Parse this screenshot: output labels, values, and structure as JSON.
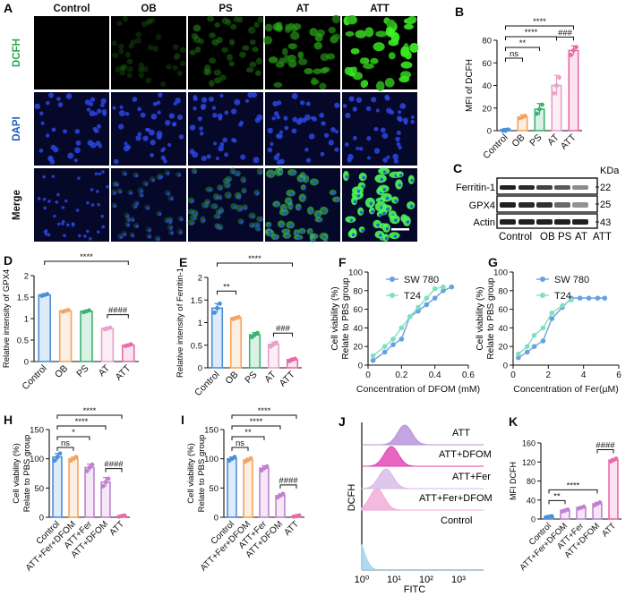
{
  "panels": {
    "A": {
      "letter": "A",
      "columns": [
        "Control",
        "OB",
        "PS",
        "AT",
        "ATT"
      ],
      "rows": [
        "DCFH",
        "DAPI",
        "Merge"
      ],
      "row_colors": [
        "#2aa84a",
        "#1f5fbf",
        "#111111"
      ]
    },
    "C": {
      "letter": "C",
      "unit": "KDa",
      "bands": [
        "Ferritin-1",
        "GPX4",
        "Actin"
      ],
      "markers": [
        "22",
        "25",
        "43"
      ],
      "lanes": [
        "Control",
        "OB",
        "PS",
        "AT",
        "ATT"
      ]
    },
    "J": {
      "letter": "J",
      "ylabel": "DCFH",
      "xlabel": "FITC",
      "xticks": [
        "10⁰",
        "10¹",
        "10²",
        "10³"
      ],
      "labels": [
        "ATT",
        "ATT+DFOM",
        "ATT+Fer",
        "ATT+Fer+DFOM",
        "Control"
      ]
    }
  },
  "chart_data": [
    {
      "id": "B",
      "letter": "B",
      "type": "bar",
      "ylabel": "MFI of DCFH",
      "ylim": [
        0,
        80
      ],
      "yticks": [
        0,
        20,
        40,
        60,
        80
      ],
      "categories": [
        "Control",
        "OB",
        "PS",
        "AT",
        "ATT"
      ],
      "values": [
        1,
        12,
        19,
        40,
        71
      ],
      "errors": [
        1,
        2,
        5,
        9,
        4
      ],
      "points": [
        [
          0,
          0,
          1
        ],
        [
          11,
          12,
          13
        ],
        [
          15,
          19,
          23
        ],
        [
          33,
          40,
          47
        ],
        [
          67,
          71,
          74
        ]
      ],
      "colors": [
        "#4a90d9",
        "#f4a460",
        "#3cb371",
        "#e8a0c8",
        "#e86aa8"
      ],
      "annotations": [
        {
          "from": 0,
          "to": 4,
          "text": "****"
        },
        {
          "from": 0,
          "to": 3,
          "text": "****"
        },
        {
          "from": 0,
          "to": 2,
          "text": "**"
        },
        {
          "from": 0,
          "to": 1,
          "text": "ns"
        },
        {
          "from": 3,
          "to": 4,
          "text": "###"
        }
      ]
    },
    {
      "id": "D",
      "letter": "D",
      "type": "bar",
      "ylabel": "Relative intensity of GPX4",
      "ylim": [
        0,
        2.0
      ],
      "yticks": [
        0,
        0.5,
        1.0,
        1.5,
        2.0
      ],
      "categories": [
        "Control",
        "OB",
        "PS",
        "AT",
        "ATT"
      ],
      "values": [
        1.55,
        1.18,
        1.17,
        0.77,
        0.38
      ],
      "errors": [
        0.03,
        0.02,
        0.02,
        0.03,
        0.02
      ],
      "points": [
        [
          1.53,
          1.55,
          1.57
        ],
        [
          1.16,
          1.18,
          1.2
        ],
        [
          1.15,
          1.17,
          1.19
        ],
        [
          0.75,
          0.77,
          0.79
        ],
        [
          0.36,
          0.38,
          0.4
        ]
      ],
      "colors": [
        "#4a90d9",
        "#f4a460",
        "#3cb371",
        "#e8a0c8",
        "#e86aa8"
      ],
      "annotations": [
        {
          "from": 0,
          "to": 4,
          "text": "****"
        },
        {
          "from": 3,
          "to": 4,
          "text": "####"
        }
      ]
    },
    {
      "id": "E",
      "letter": "E",
      "type": "bar",
      "ylabel": "Relative intensity of Ferritin-1",
      "ylim": [
        0,
        2.0
      ],
      "yticks": [
        0,
        0.5,
        1.0,
        1.5,
        2.0
      ],
      "categories": [
        "Control",
        "OB",
        "PS",
        "AT",
        "ATT"
      ],
      "values": [
        1.32,
        1.1,
        0.73,
        0.52,
        0.18
      ],
      "errors": [
        0.1,
        0.03,
        0.05,
        0.05,
        0.03
      ],
      "points": [
        [
          1.22,
          1.32,
          1.42
        ],
        [
          1.08,
          1.1,
          1.12
        ],
        [
          0.68,
          0.73,
          0.77
        ],
        [
          0.47,
          0.52,
          0.56
        ],
        [
          0.15,
          0.18,
          0.2
        ]
      ],
      "colors": [
        "#4a90d9",
        "#f4a460",
        "#3cb371",
        "#e8a0c8",
        "#e86aa8"
      ],
      "annotations": [
        {
          "from": 0,
          "to": 4,
          "text": "****"
        },
        {
          "from": 0,
          "to": 1,
          "text": "**"
        },
        {
          "from": 3,
          "to": 4,
          "text": "###"
        }
      ]
    },
    {
      "id": "F",
      "letter": "F",
      "type": "line",
      "xlabel": "Concentration of DFOM (mM)",
      "ylabel": "Cell viability (%)\nRelate to PBS group",
      "xlim": [
        0,
        0.6
      ],
      "ylim": [
        0,
        100
      ],
      "xticks": [
        0.0,
        0.2,
        0.4,
        0.6
      ],
      "yticks": [
        0,
        20,
        40,
        60,
        80,
        100
      ],
      "series": [
        {
          "name": "SW 780",
          "color": "#6aa0e0",
          "x": [
            0.03,
            0.1,
            0.15,
            0.2,
            0.25,
            0.3,
            0.35,
            0.4,
            0.45,
            0.5
          ],
          "y": [
            5,
            14,
            22,
            28,
            52,
            58,
            65,
            72,
            80,
            84
          ]
        },
        {
          "name": "T24",
          "color": "#7fe0c0",
          "x": [
            0.03,
            0.1,
            0.15,
            0.2,
            0.25,
            0.3,
            0.35,
            0.4,
            0.45
          ],
          "y": [
            10,
            20,
            28,
            40,
            52,
            62,
            72,
            82,
            84
          ]
        }
      ]
    },
    {
      "id": "G",
      "letter": "G",
      "type": "line",
      "xlabel": "Concentration of Fer(µM)",
      "ylabel": "Cell viability (%)\nRelate to PBS group",
      "xlim": [
        0,
        6
      ],
      "ylim": [
        0,
        100
      ],
      "xticks": [
        0,
        2,
        4,
        6
      ],
      "yticks": [
        0,
        20,
        40,
        60,
        80,
        100
      ],
      "series": [
        {
          "name": "SW 780",
          "color": "#6aa0e0",
          "x": [
            0.3,
            0.8,
            1.2,
            1.7,
            2.2,
            2.8,
            3.3,
            3.8,
            4.3,
            4.8,
            5.2
          ],
          "y": [
            8,
            14,
            20,
            26,
            50,
            62,
            72,
            72,
            72,
            72,
            72
          ]
        },
        {
          "name": "T24",
          "color": "#7fe0c0",
          "x": [
            0.3,
            0.8,
            1.2,
            1.7,
            2.2,
            2.8,
            3.3
          ],
          "y": [
            12,
            20,
            32,
            40,
            56,
            64,
            70
          ]
        }
      ]
    },
    {
      "id": "H",
      "letter": "H",
      "type": "bar",
      "ylabel": "Cell viability (%)\nRelate to PBS group",
      "ylim": [
        0,
        150
      ],
      "yticks": [
        0,
        50,
        100,
        150
      ],
      "categories": [
        "Control",
        "ATT+Fer+DFOM",
        "ATT+Fer",
        "ATT+DFOM",
        "ATT"
      ],
      "values": [
        103,
        100,
        85,
        60,
        2
      ],
      "errors": [
        6,
        3,
        6,
        8,
        1
      ],
      "points": [
        [
          97,
          103,
          109
        ],
        [
          97,
          100,
          103
        ],
        [
          79,
          85,
          90
        ],
        [
          53,
          60,
          66
        ],
        [
          1,
          2,
          3
        ]
      ],
      "colors": [
        "#4a90d9",
        "#f4a460",
        "#c080d0",
        "#c080d0",
        "#e86aa8"
      ],
      "annotations": [
        {
          "from": 0,
          "to": 4,
          "text": "****"
        },
        {
          "from": 0,
          "to": 3,
          "text": "****"
        },
        {
          "from": 0,
          "to": 2,
          "text": "*"
        },
        {
          "from": 0,
          "to": 1,
          "text": "ns"
        },
        {
          "from": 3,
          "to": 4,
          "text": "####"
        }
      ]
    },
    {
      "id": "I",
      "letter": "I",
      "type": "bar",
      "ylabel": "Cell viability (%)\nRelate to PBS group",
      "ylim": [
        0,
        150
      ],
      "yticks": [
        0,
        50,
        100,
        150
      ],
      "categories": [
        "Control",
        "ATT+Fer+DFOM",
        "ATT+Fer",
        "ATT+DFOM",
        "ATT"
      ],
      "values": [
        100,
        98,
        84,
        37,
        2
      ],
      "errors": [
        3,
        3,
        4,
        3,
        1
      ],
      "points": [
        [
          97,
          100,
          103
        ],
        [
          95,
          98,
          101
        ],
        [
          80,
          84,
          87
        ],
        [
          34,
          37,
          40
        ],
        [
          1,
          2,
          3
        ]
      ],
      "colors": [
        "#4a90d9",
        "#f4a460",
        "#c080d0",
        "#c080d0",
        "#e86aa8"
      ],
      "annotations": [
        {
          "from": 0,
          "to": 4,
          "text": "****"
        },
        {
          "from": 0,
          "to": 3,
          "text": "****"
        },
        {
          "from": 0,
          "to": 2,
          "text": "**"
        },
        {
          "from": 0,
          "to": 1,
          "text": "ns"
        },
        {
          "from": 3,
          "to": 4,
          "text": "####"
        }
      ]
    },
    {
      "id": "K",
      "letter": "K",
      "type": "bar",
      "ylabel": "MFI DCFH",
      "ylim": [
        0,
        160
      ],
      "yticks": [
        0,
        40,
        80,
        120,
        160
      ],
      "categories": [
        "Control",
        "ATT+Fer+DFOM",
        "ATT+Fer",
        "ATT+DFOM",
        "ATT"
      ],
      "values": [
        5,
        18,
        24,
        32,
        124
      ],
      "errors": [
        1,
        2,
        2,
        3,
        3
      ],
      "points": [
        [
          4,
          5,
          6
        ],
        [
          16,
          18,
          20
        ],
        [
          22,
          24,
          26
        ],
        [
          29,
          32,
          35
        ],
        [
          121,
          124,
          127
        ]
      ],
      "colors": [
        "#4a90d9",
        "#c080d0",
        "#c080d0",
        "#c080d0",
        "#e86aa8"
      ],
      "annotations": [
        {
          "from": 0,
          "to": 1,
          "text": "**"
        },
        {
          "from": 0,
          "to": 3,
          "text": "****"
        },
        {
          "from": 3,
          "to": 4,
          "text": "####"
        }
      ]
    }
  ]
}
